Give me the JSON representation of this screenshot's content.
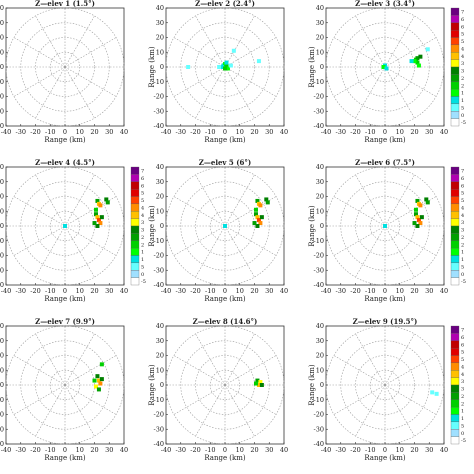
{
  "figure": {
    "panels": [
      {
        "title": "Z—elev 1 (1.5°)",
        "colorbar": false,
        "echo_key": "none"
      },
      {
        "title": "Z—elev 2 (2.4°)",
        "colorbar": false,
        "echo_key": "center"
      },
      {
        "title": "Z—elev 3 (3.4°)",
        "colorbar": true,
        "echo_key": "east_weak"
      },
      {
        "title": "Z—elev 4 (4.5°)",
        "colorbar": true,
        "echo_key": "east_strong"
      },
      {
        "title": "Z—elev 5 (6°)",
        "colorbar": false,
        "echo_key": "east_strong"
      },
      {
        "title": "Z—elev 6 (7.5°)",
        "colorbar": true,
        "echo_key": "east_strong"
      },
      {
        "title": "Z—elev 7 (9.9°)",
        "colorbar": false,
        "echo_key": "east_mid"
      },
      {
        "title": "Z—elev 8 (14.6°)",
        "colorbar": false,
        "echo_key": "east_small"
      },
      {
        "title": "Z—elev 9 (19.5°)",
        "colorbar": true,
        "echo_key": "faint"
      }
    ],
    "colorbar_labels": [
      "7",
      "6",
      "6",
      "5",
      "5",
      "4",
      "4",
      "3",
      "3",
      "2",
      "2",
      "1",
      "1",
      "5",
      "0",
      "-5"
    ],
    "colorbar_colors": [
      "#6a0080",
      "#b000b0",
      "#c00000",
      "#e00000",
      "#ff4000",
      "#ff8c00",
      "#ffc000",
      "#ffff00",
      "#008000",
      "#00a000",
      "#00d000",
      "#00ff00",
      "#00e0e0",
      "#66ffff",
      "#a0e0ff",
      "#ffffff"
    ]
  },
  "chart_data": {
    "type": "scatter",
    "title": "",
    "xlabel": "Range (km)",
    "ylabel": "Range (km)",
    "xlim": [
      -40,
      40
    ],
    "ylim": [
      -40,
      40
    ],
    "xticks": [
      "-40",
      "-30",
      "-20",
      "-10",
      "0",
      "10",
      "20",
      "30",
      "40"
    ],
    "yticks": [
      "40",
      "30",
      "20",
      "10",
      "0",
      "-10",
      "-20",
      "-30",
      "-40"
    ],
    "range_rings_km": [
      10,
      20,
      30,
      40
    ],
    "radials_deg": [
      0,
      30,
      60,
      90,
      120,
      150,
      180,
      210,
      240,
      270,
      300,
      330
    ],
    "grid": true,
    "echo_sets": {
      "none": [],
      "center": [
        {
          "x": -1,
          "y": 1,
          "dbz": 10
        },
        {
          "x": 0,
          "y": 2,
          "dbz": 15
        },
        {
          "x": 1,
          "y": 1,
          "dbz": 20
        },
        {
          "x": -2,
          "y": 0,
          "dbz": 10
        },
        {
          "x": 2,
          "y": -1,
          "dbz": 15
        },
        {
          "x": 0,
          "y": -1,
          "dbz": 20
        },
        {
          "x": -4,
          "y": 0,
          "dbz": 5
        },
        {
          "x": 4,
          "y": 1,
          "dbz": 5
        },
        {
          "x": 1,
          "y": 3,
          "dbz": 10
        },
        {
          "x": 6,
          "y": 11,
          "dbz": 5
        },
        {
          "x": -25,
          "y": 0,
          "dbz": 5
        },
        {
          "x": 23,
          "y": 4,
          "dbz": 5
        }
      ],
      "east_weak": [
        {
          "x": 21,
          "y": 5,
          "dbz": 20
        },
        {
          "x": 22,
          "y": 6,
          "dbz": 25
        },
        {
          "x": 24,
          "y": 7,
          "dbz": 30
        },
        {
          "x": 22,
          "y": 3,
          "dbz": 20
        },
        {
          "x": 23,
          "y": 1,
          "dbz": 15
        },
        {
          "x": 20,
          "y": 4,
          "dbz": 15
        },
        {
          "x": 18,
          "y": 4,
          "dbz": 10
        },
        {
          "x": 0,
          "y": 1,
          "dbz": 10
        },
        {
          "x": -1,
          "y": 0,
          "dbz": 15
        },
        {
          "x": 1,
          "y": -1,
          "dbz": 10
        },
        {
          "x": 29,
          "y": 12,
          "dbz": 5
        }
      ],
      "east_strong": [
        {
          "x": 22,
          "y": 17,
          "dbz": 25
        },
        {
          "x": 23,
          "y": 15,
          "dbz": 40
        },
        {
          "x": 24,
          "y": 14,
          "dbz": 45
        },
        {
          "x": 28,
          "y": 18,
          "dbz": 30
        },
        {
          "x": 29,
          "y": 16,
          "dbz": 25
        },
        {
          "x": 21,
          "y": 8,
          "dbz": 25
        },
        {
          "x": 22,
          "y": 6,
          "dbz": 40
        },
        {
          "x": 23,
          "y": 4,
          "dbz": 50
        },
        {
          "x": 24,
          "y": 2,
          "dbz": 45
        },
        {
          "x": 22,
          "y": 0,
          "dbz": 30
        },
        {
          "x": 20,
          "y": 2,
          "dbz": 25
        },
        {
          "x": 25,
          "y": 6,
          "dbz": 30
        },
        {
          "x": 21,
          "y": 11,
          "dbz": 20
        },
        {
          "x": 0,
          "y": 0,
          "dbz": 10
        }
      ],
      "east_mid": [
        {
          "x": 25,
          "y": 14,
          "dbz": 20
        },
        {
          "x": 22,
          "y": 6,
          "dbz": 30
        },
        {
          "x": 23,
          "y": 3,
          "dbz": 40
        },
        {
          "x": 24,
          "y": 1,
          "dbz": 45
        },
        {
          "x": 21,
          "y": -1,
          "dbz": 35
        },
        {
          "x": 23,
          "y": -3,
          "dbz": 25
        },
        {
          "x": 20,
          "y": 3,
          "dbz": 20
        },
        {
          "x": 25,
          "y": 4,
          "dbz": 30
        }
      ],
      "east_small": [
        {
          "x": 22,
          "y": 3,
          "dbz": 25
        },
        {
          "x": 24,
          "y": 2,
          "dbz": 35
        },
        {
          "x": 23,
          "y": 0,
          "dbz": 40
        },
        {
          "x": 25,
          "y": 0,
          "dbz": 30
        },
        {
          "x": 21,
          "y": 1,
          "dbz": 20
        }
      ],
      "faint": [
        {
          "x": 32,
          "y": -5,
          "dbz": 5
        },
        {
          "x": 35,
          "y": -6,
          "dbz": 5
        }
      ]
    }
  }
}
